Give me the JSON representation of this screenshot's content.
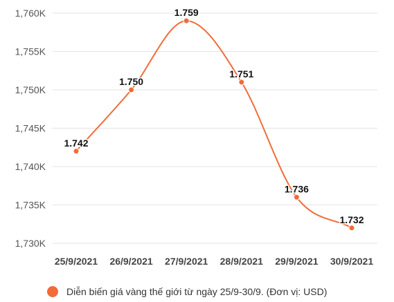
{
  "chart_data": {
    "type": "line",
    "categories": [
      "25/9/2021",
      "26/9/2021",
      "27/9/2021",
      "28/9/2021",
      "29/9/2021",
      "30/9/2021"
    ],
    "series": [
      {
        "name": "Diễn biến giá vàng thế giới từ ngày 25/9-30/9. (Đơn vị: USD)",
        "values": [
          1742,
          1750,
          1759,
          1751,
          1736,
          1732
        ],
        "data_labels": [
          "1.742",
          "1.750",
          "1.759",
          "1.751",
          "1.736",
          "1.732"
        ],
        "color": "#f26b38"
      }
    ],
    "y_ticks": [
      1730,
      1735,
      1740,
      1745,
      1750,
      1755,
      1760
    ],
    "y_tick_labels": [
      "1,730K",
      "1,735K",
      "1,740K",
      "1,745K",
      "1,750K",
      "1,755K",
      "1,760K"
    ],
    "ylim": [
      1730,
      1760
    ],
    "grid": true,
    "smooth": true,
    "legend_position": "bottom"
  }
}
